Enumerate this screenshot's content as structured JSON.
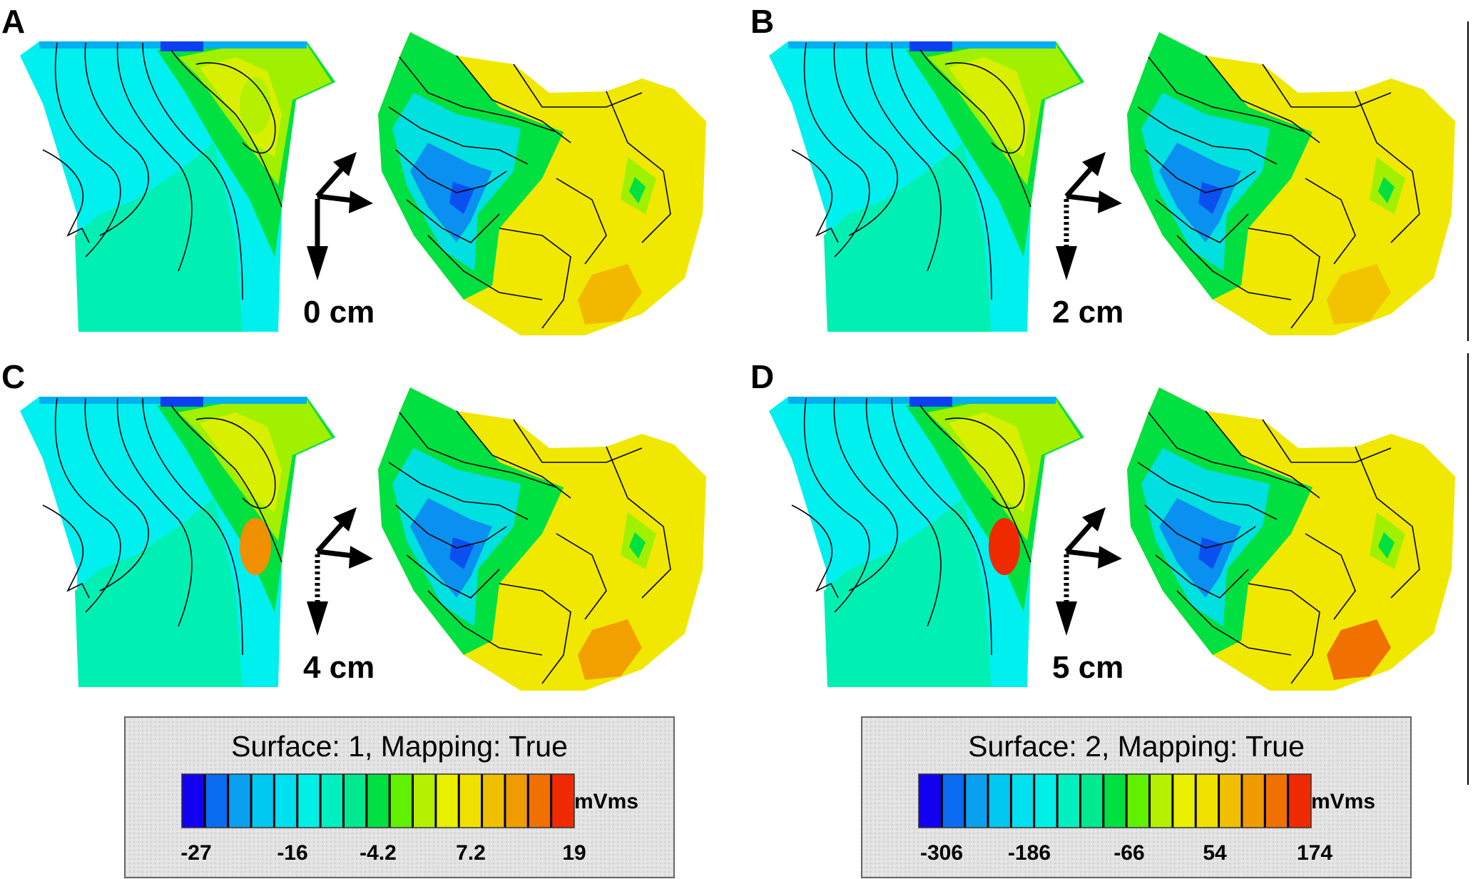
{
  "panels": [
    {
      "letter": "A",
      "distance": "0 cm",
      "arrow": "solid",
      "heart_color": "#f2b800",
      "torso_hot": "#b4f000"
    },
    {
      "letter": "B",
      "distance": "2 cm",
      "arrow": "dashed",
      "heart_color": "#f2c400",
      "torso_hot": "#d8f000"
    },
    {
      "letter": "C",
      "distance": "4 cm",
      "arrow": "dashed",
      "heart_color": "#f2a000",
      "torso_hot": "#f09000"
    },
    {
      "letter": "D",
      "distance": "5 cm",
      "arrow": "dashed",
      "heart_color": "#f07000",
      "torso_hot": "#f02a00"
    }
  ],
  "legends": [
    {
      "title": "Surface: 1, Mapping: True",
      "unit": "mVms",
      "ticks": [
        "-27",
        "-16",
        "-4.2",
        "7.2",
        "19"
      ]
    },
    {
      "title": "Surface: 2, Mapping: True",
      "unit": "mVms",
      "ticks": [
        "-306",
        "-186",
        "-66",
        "54",
        "174"
      ]
    }
  ],
  "colors": {
    "scale": [
      "#1400f0",
      "#0a6cf0",
      "#0aa0f0",
      "#00c8f0",
      "#00e0f0",
      "#00f0e8",
      "#00f0c0",
      "#00e890",
      "#00e040",
      "#60f000",
      "#b4f000",
      "#e8f000",
      "#f0e000",
      "#f0c000",
      "#f09c00",
      "#f07000",
      "#f02a00"
    ],
    "torso_base": "#00f0f0",
    "torso_mid": "#00f0b4",
    "heart_blue": "#0a90f0",
    "heart_green": "#00e040"
  }
}
